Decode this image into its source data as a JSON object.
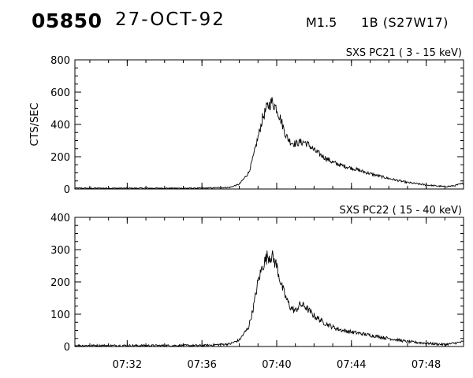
{
  "header": {
    "event_id": "05850",
    "date": "27-OCT-92",
    "flare_class": "M1.5",
    "location": "1B (S27W17)"
  },
  "chart_data": [
    {
      "type": "line",
      "panel_label": "SXS PC21  (  3 - 15 keV)",
      "ylabel": "CTS/SEC",
      "xlabel": "",
      "x_unit": "UT time",
      "xlim": [
        "07:29:12",
        "07:50:00"
      ],
      "ylim": [
        0,
        800
      ],
      "yticks": [
        0,
        200,
        400,
        600,
        800
      ],
      "x_ticks": [
        "07:32",
        "07:36",
        "07:40",
        "07:44",
        "07:48"
      ],
      "x_tick_labels_shown": false,
      "series": [
        {
          "x": [
            "07:29:12",
            "07:32:00",
            "07:36:00",
            "07:37:30",
            "07:38:00",
            "07:38:30",
            "07:38:45",
            "07:39:00",
            "07:39:15",
            "07:39:30",
            "07:39:45",
            "07:40:00",
            "07:40:15",
            "07:40:30",
            "07:40:45",
            "07:41:00",
            "07:41:15",
            "07:41:30",
            "07:41:45",
            "07:42:00",
            "07:42:30",
            "07:43:00",
            "07:43:30",
            "07:44:00",
            "07:45:00",
            "07:46:00",
            "07:47:00",
            "07:48:00",
            "07:48:30",
            "07:49:00",
            "07:49:30",
            "07:50:00"
          ],
          "y": [
            5,
            5,
            5,
            10,
            30,
            100,
            200,
            320,
            440,
            510,
            540,
            500,
            420,
            330,
            290,
            280,
            290,
            290,
            270,
            240,
            200,
            165,
            145,
            130,
            95,
            65,
            40,
            25,
            20,
            15,
            20,
            35
          ]
        }
      ]
    },
    {
      "type": "line",
      "panel_label": "SXS PC22  ( 15 - 40 keV)",
      "ylabel": "",
      "xlabel": "",
      "x_unit": "UT time",
      "xlim": [
        "07:29:12",
        "07:50:00"
      ],
      "ylim": [
        0,
        400
      ],
      "yticks": [
        0,
        100,
        200,
        300,
        400
      ],
      "x_ticks": [
        "07:32",
        "07:36",
        "07:40",
        "07:44",
        "07:48"
      ],
      "x_tick_labels_shown": true,
      "series": [
        {
          "x": [
            "07:29:12",
            "07:32:00",
            "07:36:00",
            "07:37:30",
            "07:38:00",
            "07:38:30",
            "07:38:45",
            "07:39:00",
            "07:39:15",
            "07:39:30",
            "07:39:45",
            "07:40:00",
            "07:40:15",
            "07:40:30",
            "07:40:45",
            "07:41:00",
            "07:41:15",
            "07:41:30",
            "07:41:45",
            "07:42:00",
            "07:42:30",
            "07:43:00",
            "07:43:30",
            "07:44:00",
            "07:45:00",
            "07:46:00",
            "07:47:00",
            "07:48:00",
            "07:48:30",
            "07:49:00",
            "07:49:30",
            "07:50:00"
          ],
          "y": [
            3,
            3,
            3,
            8,
            20,
            60,
            120,
            200,
            250,
            280,
            280,
            250,
            190,
            150,
            120,
            110,
            130,
            125,
            110,
            95,
            75,
            60,
            50,
            45,
            35,
            25,
            15,
            10,
            8,
            6,
            10,
            15
          ]
        }
      ]
    }
  ]
}
